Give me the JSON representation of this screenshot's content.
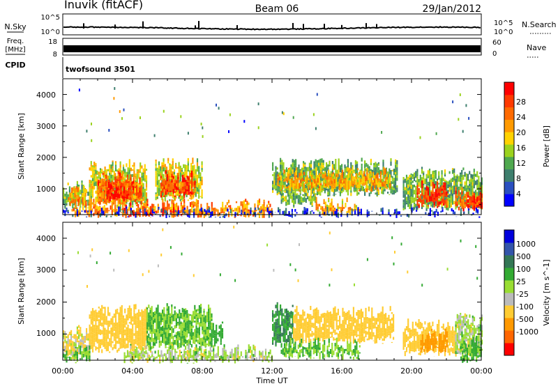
{
  "header": {
    "station": "Inuvik (fitACF)",
    "beam": "Beam 06",
    "date": "29/Jan/2012"
  },
  "status_panel": {
    "nsky_label": "N.Sky",
    "nsky_ticks": [
      "10^5",
      "10^0"
    ],
    "nsearch_label": "N.Search",
    "nsearch_ticks": [
      "10^5",
      "10^0"
    ],
    "freq_label_1": "Freq.",
    "freq_label_2": "[MHz]",
    "freq_ticks": [
      "18",
      "8"
    ],
    "nave_label": "Nave",
    "nave_ticks": [
      "60",
      "0"
    ],
    "cpid_label": "CPID",
    "cpid_value": "twofsound 3501"
  },
  "colors": {
    "power_scale": [
      "#0000ff",
      "#2a4fbf",
      "#3e7f6e",
      "#4fa84f",
      "#9bd21e",
      "#ffd200",
      "#ff9a00",
      "#ff6a00",
      "#ff3a00",
      "#ff0000"
    ],
    "velocity_scale": [
      "#ff0000",
      "#ff6600",
      "#ff9900",
      "#ffcc33",
      "#bbbbbb",
      "#99dd33",
      "#33aa33",
      "#337755",
      "#3355aa",
      "#0000dd"
    ],
    "ground_scatter": "#bbbbbb"
  },
  "chart_data": [
    {
      "type": "heatmap",
      "name": "power",
      "ylabel": "Slant Range [km]",
      "yticks": [
        "4000",
        "3000",
        "2000",
        "1000"
      ],
      "ylim": [
        180,
        4500
      ],
      "xlim": [
        0,
        24
      ],
      "colorbar_label": "Power [dB]",
      "colorbar_ticks": [
        "28",
        "24",
        "20",
        "16",
        "12",
        "8",
        "4"
      ],
      "colorbar_range": [
        0,
        32
      ],
      "regions": [
        {
          "t0": 0.0,
          "t1": 1.5,
          "r0": 450,
          "r1": 1100,
          "value": 12
        },
        {
          "t0": 0.3,
          "t1": 1.3,
          "r0": 550,
          "r1": 900,
          "value": 20
        },
        {
          "t0": 1.5,
          "t1": 4.8,
          "r0": 500,
          "r1": 1750,
          "value": 16
        },
        {
          "t0": 2.0,
          "t1": 4.5,
          "r0": 600,
          "r1": 1400,
          "value": 24
        },
        {
          "t0": 2.5,
          "t1": 4.0,
          "r0": 700,
          "r1": 1100,
          "value": 30
        },
        {
          "t0": 5.3,
          "t1": 8.0,
          "r0": 700,
          "r1": 1800,
          "value": 16
        },
        {
          "t0": 5.6,
          "t1": 7.6,
          "r0": 800,
          "r1": 1400,
          "value": 26
        },
        {
          "t0": 0.5,
          "t1": 12.0,
          "r0": 180,
          "r1": 500,
          "value": 22
        },
        {
          "t0": 3.5,
          "t1": 7.0,
          "r0": 200,
          "r1": 380,
          "value": 28
        },
        {
          "t0": 12.0,
          "t1": 19.2,
          "r0": 850,
          "r1": 1800,
          "value": 12
        },
        {
          "t0": 12.3,
          "t1": 18.8,
          "r0": 1000,
          "r1": 1500,
          "value": 20
        },
        {
          "t0": 12.5,
          "t1": 14.5,
          "r0": 500,
          "r1": 900,
          "value": 12
        },
        {
          "t0": 14.5,
          "t1": 17.0,
          "r0": 250,
          "r1": 550,
          "value": 20
        },
        {
          "t0": 19.5,
          "t1": 24.0,
          "r0": 400,
          "r1": 1500,
          "value": 12
        },
        {
          "t0": 20.3,
          "t1": 22.0,
          "r0": 500,
          "r1": 1100,
          "value": 28
        },
        {
          "t0": 22.5,
          "t1": 24.0,
          "r0": 350,
          "r1": 900,
          "value": 24
        },
        {
          "t0": 23.2,
          "t1": 24.0,
          "r0": 400,
          "r1": 700,
          "value": 30
        },
        {
          "t0": 0.0,
          "t1": 24.0,
          "r0": 180,
          "r1": 240,
          "value": 4
        }
      ]
    },
    {
      "type": "heatmap",
      "name": "velocity",
      "ylabel": "Slant Range [km]",
      "yticks": [
        "4000",
        "3000",
        "2000",
        "1000"
      ],
      "ylim": [
        180,
        4500
      ],
      "xlim": [
        0,
        24
      ],
      "colorbar_label": "Velocity [m s^-1]",
      "colorbar_ticks": [
        "1000",
        "500",
        "100",
        "25",
        "-25",
        "-100",
        "-500",
        "-1000"
      ],
      "regions": [
        {
          "t0": 0.0,
          "t1": 1.5,
          "r0": 300,
          "r1": 1100,
          "value": -100
        },
        {
          "t0": 0.0,
          "t1": 1.5,
          "r0": 180,
          "r1": 450,
          "value": 150
        },
        {
          "t0": 1.5,
          "t1": 4.8,
          "r0": 500,
          "r1": 1750,
          "value": -300
        },
        {
          "t0": 4.8,
          "t1": 8.5,
          "r0": 600,
          "r1": 1800,
          "value": 100
        },
        {
          "t0": 8.5,
          "t1": 9.2,
          "r0": 700,
          "r1": 1200,
          "value": 300
        },
        {
          "t0": 3.5,
          "t1": 12.0,
          "r0": 180,
          "r1": 500,
          "value": 0
        },
        {
          "t0": 12.0,
          "t1": 13.2,
          "r0": 700,
          "r1": 1800,
          "value": 500
        },
        {
          "t0": 13.2,
          "t1": 19.0,
          "r0": 800,
          "r1": 1700,
          "value": -300
        },
        {
          "t0": 12.5,
          "t1": 17.0,
          "r0": 300,
          "r1": 700,
          "value": 100
        },
        {
          "t0": 19.5,
          "t1": 22.5,
          "r0": 400,
          "r1": 1300,
          "value": -300
        },
        {
          "t0": 20.5,
          "t1": 22.0,
          "r0": 500,
          "r1": 1000,
          "value": -800
        },
        {
          "t0": 22.5,
          "t1": 24.0,
          "r0": 400,
          "r1": 1500,
          "value": 0
        },
        {
          "t0": 22.8,
          "t1": 24.0,
          "r0": 200,
          "r1": 800,
          "value": 150
        }
      ]
    }
  ],
  "xaxis": {
    "label": "Time UT",
    "ticks": [
      "00:00",
      "04:00",
      "08:00",
      "12:00",
      "16:00",
      "20:00",
      "00:00"
    ]
  }
}
